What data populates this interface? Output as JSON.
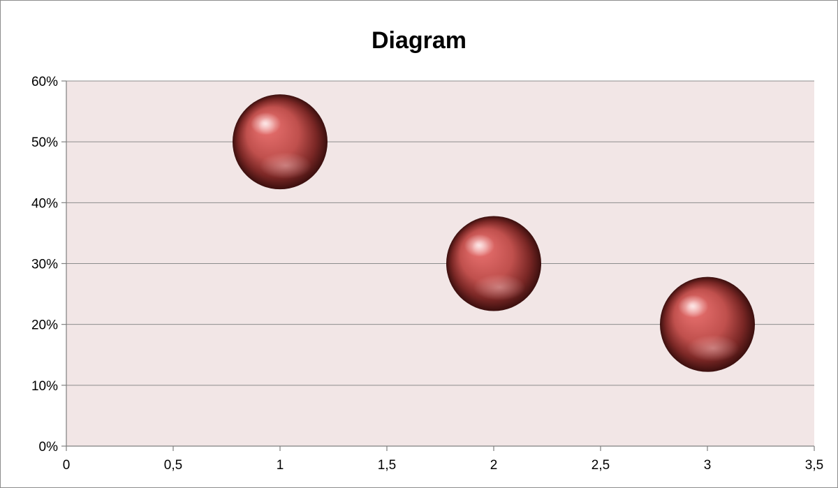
{
  "chart_data": {
    "type": "bubble",
    "title": "Diagram",
    "xlabel": "",
    "ylabel": "",
    "xlim": [
      0,
      3.5
    ],
    "ylim": [
      0,
      0.6
    ],
    "x_ticks": [
      0,
      0.5,
      1,
      1.5,
      2,
      2.5,
      3,
      3.5
    ],
    "x_tick_labels": [
      "0",
      "0,5",
      "1",
      "1,5",
      "2",
      "2,5",
      "3",
      "3,5"
    ],
    "y_ticks": [
      0,
      0.1,
      0.2,
      0.3,
      0.4,
      0.5,
      0.6
    ],
    "y_tick_labels": [
      "0%",
      "10%",
      "20%",
      "30%",
      "40%",
      "50%",
      "60%"
    ],
    "grid": "horizontal",
    "legend": "none",
    "series": [
      {
        "points": [
          {
            "x": 1,
            "y": 0.5
          },
          {
            "x": 2,
            "y": 0.3
          },
          {
            "x": 3,
            "y": 0.2
          }
        ]
      }
    ],
    "colors": {
      "plot_background": "#f2e6e6",
      "bubble": "#c0504d",
      "grid": "#8c8c8c",
      "axis": "#7f7f7f"
    }
  }
}
